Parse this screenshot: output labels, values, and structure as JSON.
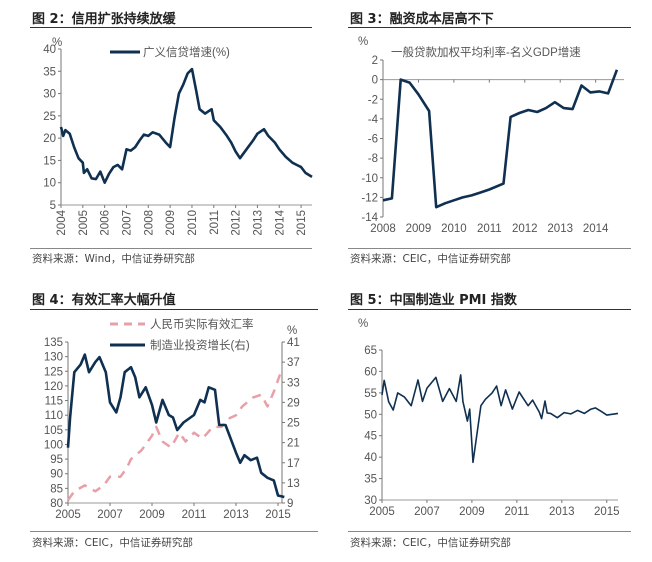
{
  "colors": {
    "navy": "#0f3050",
    "pink": "#e8a0a8",
    "axis": "#666"
  },
  "chart_data": [
    {
      "type": "line",
      "title": "图 2：信用扩张持续放缓",
      "source": "资料来源：Wind，中信证券研究部",
      "ylabel": "%",
      "ylim": [
        5,
        40
      ],
      "xlim": [
        2004,
        2015.5
      ],
      "yticks": [
        5,
        10,
        15,
        20,
        25,
        30,
        35,
        40
      ],
      "xticks": [
        2004,
        2005,
        2006,
        2007,
        2008,
        2009,
        2010,
        2011,
        2012,
        2013,
        2014,
        2015
      ],
      "series": [
        {
          "name": "广义信贷增速(%)",
          "axis": "left",
          "style": "solid",
          "x": [
            2004,
            2004.1,
            2004.2,
            2004.4,
            2004.6,
            2004.8,
            2005,
            2005.05,
            2005.2,
            2005.4,
            2005.6,
            2005.8,
            2006,
            2006.2,
            2006.4,
            2006.6,
            2006.8,
            2007,
            2007.2,
            2007.4,
            2007.6,
            2007.8,
            2008,
            2008.2,
            2008.5,
            2008.8,
            2009,
            2009.2,
            2009.4,
            2009.6,
            2009.8,
            2010,
            2010.2,
            2010.35,
            2010.6,
            2010.9,
            2011,
            2011.3,
            2011.6,
            2011.8,
            2012,
            2012.2,
            2012.5,
            2012.8,
            2013,
            2013.3,
            2013.5,
            2013.8,
            2014,
            2014.3,
            2014.6,
            2014.8,
            2015,
            2015.2,
            2015.5
          ],
          "y": [
            22.5,
            20.5,
            21.8,
            21,
            18,
            15.5,
            14.5,
            12.2,
            13,
            11,
            10.8,
            12.5,
            10,
            12,
            13.5,
            14,
            13,
            17.5,
            17.2,
            18,
            19.5,
            20.8,
            20.5,
            21.3,
            20.8,
            19,
            18,
            24.5,
            30,
            32,
            34.5,
            35.5,
            30.5,
            26.5,
            25.5,
            26.5,
            24,
            22.5,
            20.5,
            19,
            17,
            15.5,
            17.5,
            19.5,
            21,
            22,
            20.5,
            19,
            17.5,
            15.8,
            14.5,
            14,
            13.5,
            12.2,
            11.3
          ]
        }
      ]
    },
    {
      "type": "line",
      "title": "图 3：融资成本居高不下",
      "source": "资料来源：CEIC，中信证券研究部",
      "ylabel": "%",
      "ylim": [
        -14,
        2
      ],
      "xlim": [
        2008,
        2014.8
      ],
      "yticks": [
        -14,
        -12,
        -10,
        -8,
        -6,
        -4,
        -2,
        0,
        2
      ],
      "xticks": [
        2008,
        2009,
        2010,
        2011,
        2012,
        2013,
        2014
      ],
      "series": [
        {
          "name": "一般贷款加权平均利率-名义GDP增速",
          "axis": "left",
          "style": "solid",
          "x": [
            2008,
            2008.25,
            2008.5,
            2008.75,
            2009,
            2009.3,
            2009.5,
            2009.75,
            2010,
            2010.25,
            2010.5,
            2010.75,
            2011,
            2011.4,
            2011.6,
            2011.85,
            2012.1,
            2012.35,
            2012.6,
            2012.85,
            2013.1,
            2013.35,
            2013.6,
            2013.85,
            2014.1,
            2014.35,
            2014.6
          ],
          "y": [
            -12.3,
            -12.1,
            0,
            -0.3,
            -1.5,
            -3.2,
            -13,
            -12.6,
            -12.3,
            -12,
            -11.8,
            -11.5,
            -11.2,
            -10.6,
            -3.8,
            -3.4,
            -3.1,
            -3.3,
            -2.9,
            -2.3,
            -2.9,
            -3.0,
            -0.6,
            -1.3,
            -1.2,
            -1.4,
            1.0
          ]
        }
      ]
    },
    {
      "type": "line",
      "title": "图 4：有效汇率大幅升值",
      "source": "资料来源：CEIC，中信证券研究部",
      "ylabel_right": "%",
      "ylim": [
        80,
        135
      ],
      "ylim_right": [
        9,
        41
      ],
      "xlim": [
        2005,
        2015
      ],
      "yticks": [
        80,
        85,
        90,
        95,
        100,
        105,
        110,
        115,
        120,
        125,
        130,
        135
      ],
      "yticks_right": [
        9,
        13,
        17,
        21,
        25,
        29,
        33,
        37,
        41
      ],
      "xticks": [
        2005,
        2007,
        2009,
        2011,
        2013,
        2015
      ],
      "series": [
        {
          "name": "人民币实际有效汇率",
          "axis": "left",
          "style": "dashed",
          "x": [
            2005,
            2005.3,
            2005.8,
            2006.3,
            2006.7,
            2007,
            2007.5,
            2007.8,
            2008,
            2008.5,
            2009,
            2009.2,
            2009.5,
            2009.9,
            2010.3,
            2010.6,
            2011,
            2011.4,
            2011.9,
            2012.3,
            2012.7,
            2013,
            2013.3,
            2013.8,
            2014.2,
            2014.5,
            2014.8,
            2015,
            2015.2
          ],
          "y": [
            81,
            84,
            86,
            84,
            86,
            89,
            89,
            92,
            95,
            98,
            103,
            106,
            101,
            99,
            104,
            101,
            104,
            102,
            106,
            106,
            109,
            110,
            113,
            116,
            117,
            113,
            118,
            122,
            126
          ]
        },
        {
          "name": "制造业投资增长(右)",
          "axis": "right",
          "style": "solid",
          "x": [
            2005,
            2005.1,
            2005.3,
            2005.6,
            2005.8,
            2006,
            2006.3,
            2006.5,
            2006.8,
            2007,
            2007.3,
            2007.5,
            2007.7,
            2008,
            2008.2,
            2008.4,
            2008.7,
            2009,
            2009.2,
            2009.5,
            2009.8,
            2010,
            2010.2,
            2010.5,
            2011,
            2011.3,
            2011.5,
            2011.7,
            2012,
            2012.2,
            2012.5,
            2013,
            2013.2,
            2013.4,
            2013.7,
            2014,
            2014.2,
            2014.5,
            2014.8,
            2015,
            2015.3
          ],
          "y": [
            20,
            26,
            35,
            36.5,
            38.5,
            35,
            37,
            38,
            35,
            29,
            27,
            30,
            35,
            36,
            34,
            30,
            32,
            28.5,
            25,
            29.5,
            26.5,
            26,
            23.5,
            25,
            26.5,
            29.5,
            29,
            32,
            31.5,
            24.5,
            24.5,
            19,
            17,
            18.5,
            17.5,
            18,
            15,
            14,
            13.5,
            10.5,
            10.2
          ]
        }
      ]
    },
    {
      "type": "line",
      "title": "图 5：中国制造业 PMI 指数",
      "source": "资料来源：CEIC，中信证券研究部",
      "ylabel": "%",
      "ylim": [
        30,
        65
      ],
      "xlim": [
        2005,
        2015.5
      ],
      "yticks": [
        30,
        35,
        40,
        45,
        50,
        55,
        60,
        65
      ],
      "xticks": [
        2005,
        2007,
        2009,
        2011,
        2013,
        2015
      ],
      "series": [
        {
          "name": "PMI",
          "axis": "left",
          "style": "solid",
          "x": [
            2005,
            2005.1,
            2005.3,
            2005.5,
            2005.7,
            2006,
            2006.3,
            2006.6,
            2006.8,
            2007,
            2007.4,
            2007.7,
            2008,
            2008.3,
            2008.5,
            2008.6,
            2008.8,
            2008.9,
            2009.05,
            2009.4,
            2009.6,
            2009.9,
            2010.1,
            2010.3,
            2010.5,
            2010.8,
            2011.1,
            2011.5,
            2011.7,
            2012,
            2012.1,
            2012.25,
            2012.35,
            2012.5,
            2012.8,
            2013.1,
            2013.4,
            2013.7,
            2014,
            2014.3,
            2014.5,
            2014.8,
            2015,
            2015.5
          ],
          "y": [
            54.5,
            57.9,
            52.9,
            51,
            55,
            54,
            52,
            58,
            53,
            56.1,
            58.6,
            53,
            56,
            53,
            59.2,
            53,
            48.4,
            51.2,
            38.8,
            52,
            53.5,
            55,
            56.6,
            52,
            55.7,
            51.2,
            55.2,
            52,
            53.3,
            50.5,
            49,
            53.1,
            50.3,
            50.2,
            49.2,
            50.4,
            50.1,
            50.9,
            50.2,
            51.2,
            51.5,
            50.5,
            49.8,
            50.2
          ]
        }
      ]
    }
  ]
}
